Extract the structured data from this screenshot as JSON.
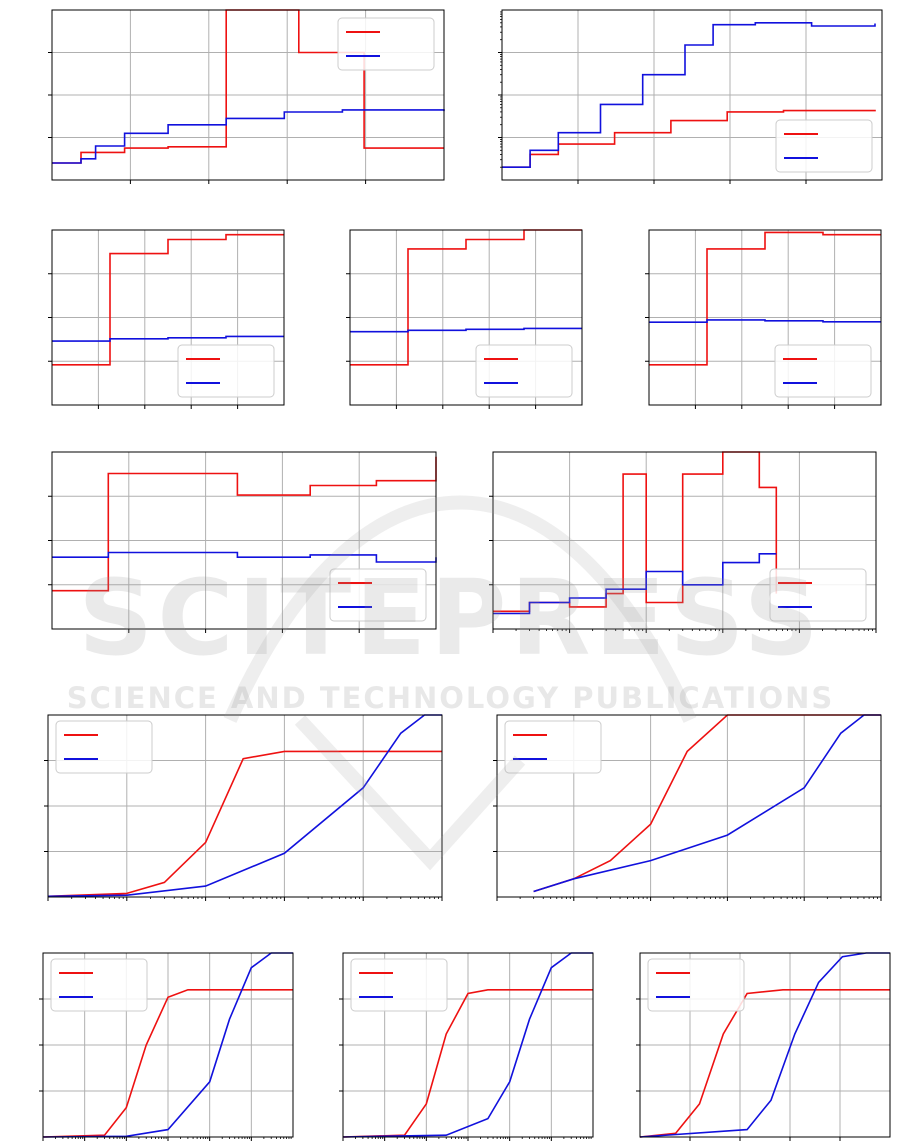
{
  "colors": {
    "red": "#ee1111",
    "blue": "#1111dd",
    "grid": "#b0b0b0",
    "axis": "#000000"
  },
  "watermark": {
    "line1": "SCITEPRESS",
    "line2": "SCIENCE AND TECHNOLOGY PUBLICATIONS"
  },
  "chart_data": [
    {
      "panel": 1,
      "type": "line",
      "step": true,
      "yscale": "linear",
      "grid": true,
      "legend_position": "top-right",
      "legend_entries": 2,
      "xlim": [
        0,
        5.4
      ],
      "ylim": [
        0,
        4
      ],
      "series": [
        {
          "color": "red",
          "x": [
            0,
            0.4,
            0.4,
            1.0,
            1.6,
            2.4,
            2.4,
            3.4,
            3.4,
            4.3,
            4.3,
            5.4
          ],
          "y": [
            0.4,
            0.4,
            0.65,
            0.75,
            0.78,
            0.78,
            4.0,
            3.6,
            3.0,
            2.9,
            0.75,
            0.75
          ]
        },
        {
          "color": "blue",
          "x": [
            0,
            0.4,
            0.6,
            1.0,
            1.6,
            2.4,
            3.2,
            4.0,
            5.4
          ],
          "y": [
            0.4,
            0.5,
            0.8,
            1.1,
            1.3,
            1.45,
            1.6,
            1.65,
            1.62
          ]
        }
      ]
    },
    {
      "panel": 2,
      "type": "line",
      "step": true,
      "yscale": "log",
      "grid": true,
      "legend_position": "bottom-right",
      "legend_entries": 2,
      "xlim": [
        0,
        5.4
      ],
      "ylim": [
        0.1,
        1000
      ],
      "series": [
        {
          "color": "red",
          "x": [
            0,
            0.4,
            0.8,
            1.6,
            2.4,
            3.2,
            4.0,
            5.3
          ],
          "y": [
            0.2,
            0.4,
            0.7,
            1.3,
            2.5,
            4.0,
            4.3,
            4.5
          ]
        },
        {
          "color": "blue",
          "x": [
            0,
            0.4,
            0.8,
            1.4,
            2.0,
            2.6,
            3.0,
            3.6,
            4.4,
            5.3
          ],
          "y": [
            0.2,
            0.5,
            1.3,
            6.0,
            30,
            150,
            450,
            500,
            420,
            480
          ]
        }
      ]
    },
    {
      "panel": 3,
      "type": "line",
      "step": true,
      "yscale": "linear",
      "grid": true,
      "legend_position": "bottom-right",
      "legend_entries": 2,
      "xlim": [
        0,
        4
      ],
      "ylim": [
        0,
        3.7
      ],
      "series": [
        {
          "color": "red",
          "x": [
            0,
            1,
            1,
            2,
            3,
            4
          ],
          "y": [
            0.85,
            0.85,
            3.2,
            3.5,
            3.6,
            3.6
          ]
        },
        {
          "color": "blue",
          "x": [
            0,
            1,
            2,
            3,
            4
          ],
          "y": [
            1.35,
            1.4,
            1.42,
            1.45,
            1.45
          ]
        }
      ]
    },
    {
      "panel": 4,
      "type": "line",
      "step": true,
      "yscale": "linear",
      "grid": true,
      "legend_position": "bottom-right",
      "legend_entries": 2,
      "xlim": [
        0,
        4
      ],
      "ylim": [
        0,
        3.7
      ],
      "series": [
        {
          "color": "red",
          "x": [
            0,
            1,
            1,
            2,
            3,
            4
          ],
          "y": [
            0.85,
            0.85,
            3.3,
            3.5,
            3.7,
            3.7
          ]
        },
        {
          "color": "blue",
          "x": [
            0,
            1,
            2,
            3,
            4
          ],
          "y": [
            1.55,
            1.58,
            1.6,
            1.62,
            1.62
          ]
        }
      ]
    },
    {
      "panel": 5,
      "type": "line",
      "step": true,
      "yscale": "linear",
      "grid": true,
      "legend_position": "bottom-right",
      "legend_entries": 2,
      "xlim": [
        0,
        4
      ],
      "ylim": [
        0,
        3.7
      ],
      "series": [
        {
          "color": "red",
          "x": [
            0,
            1,
            1,
            2,
            3,
            4
          ],
          "y": [
            0.85,
            0.85,
            3.3,
            3.65,
            3.6,
            3.6
          ]
        },
        {
          "color": "blue",
          "x": [
            0,
            1,
            2,
            3,
            4
          ],
          "y": [
            1.75,
            1.8,
            1.78,
            1.76,
            1.76
          ]
        }
      ]
    },
    {
      "panel": 6,
      "type": "line",
      "step": true,
      "yscale": "linear",
      "grid": true,
      "legend_position": "bottom-right",
      "legend_entries": 2,
      "xlim": [
        0,
        5.8
      ],
      "ylim": [
        0,
        3.7
      ],
      "series": [
        {
          "color": "red",
          "x": [
            0,
            0.85,
            0.85,
            2.3,
            2.8,
            3.9,
            4.9,
            5.8
          ],
          "y": [
            0.8,
            0.8,
            3.25,
            3.25,
            2.8,
            3.0,
            3.1,
            3.6
          ]
        },
        {
          "color": "blue",
          "x": [
            0,
            0.85,
            2.3,
            2.8,
            3.9,
            4.9,
            5.8
          ],
          "y": [
            1.5,
            1.6,
            1.6,
            1.5,
            1.55,
            1.4,
            1.5
          ]
        }
      ]
    },
    {
      "panel": 7,
      "type": "line",
      "step": true,
      "yscale": "linear",
      "xscale": "log",
      "grid": true,
      "legend_position": "bottom-right",
      "legend_entries": 2,
      "xlim": [
        1,
        100000
      ],
      "ylim": [
        0,
        4
      ],
      "series": [
        {
          "color": "red",
          "x": [
            1,
            3,
            10,
            30,
            50,
            100,
            300,
            1000,
            3000,
            5000
          ],
          "y": [
            0.4,
            0.6,
            0.5,
            0.8,
            3.5,
            0.6,
            3.5,
            4.0,
            3.2,
            0.8
          ]
        },
        {
          "color": "blue",
          "x": [
            1,
            3,
            10,
            30,
            100,
            300,
            1000,
            3000,
            5000
          ],
          "y": [
            0.35,
            0.6,
            0.7,
            0.9,
            1.3,
            1.0,
            1.5,
            1.7,
            1.7
          ]
        }
      ]
    },
    {
      "panel": 8,
      "type": "line",
      "xscale": "log",
      "grid": true,
      "legend_position": "top-left",
      "legend_entries": 2,
      "xlim": [
        1,
        100000
      ],
      "ylim": [
        0,
        5
      ],
      "series": [
        {
          "color": "red",
          "x": [
            1,
            10,
            30,
            100,
            300,
            1000,
            3000,
            100000
          ],
          "y": [
            0.02,
            0.1,
            0.4,
            1.5,
            3.8,
            4.0,
            4.0,
            4.0
          ]
        },
        {
          "color": "blue",
          "x": [
            1,
            10,
            100,
            1000,
            10000,
            30000,
            60000,
            100000
          ],
          "y": [
            0.02,
            0.05,
            0.3,
            1.2,
            3.0,
            4.5,
            5.0,
            5.0
          ]
        }
      ]
    },
    {
      "panel": 9,
      "type": "line",
      "xscale": "log",
      "grid": true,
      "legend_position": "top-left",
      "legend_entries": 2,
      "xlim": [
        1,
        100000
      ],
      "ylim": [
        0,
        5
      ],
      "series": [
        {
          "color": "red",
          "x": [
            3,
            10,
            30,
            100,
            300,
            1000,
            2000,
            100000
          ],
          "y": [
            0.15,
            0.5,
            1.0,
            2.0,
            4.0,
            5.0,
            5.0,
            5.0
          ]
        },
        {
          "color": "blue",
          "x": [
            3,
            10,
            100,
            1000,
            10000,
            30000,
            60000,
            100000
          ],
          "y": [
            0.15,
            0.5,
            1.0,
            1.7,
            3.0,
            4.5,
            5.0,
            5.0
          ]
        }
      ]
    },
    {
      "panel": 10,
      "type": "line",
      "xscale": "log",
      "grid": true,
      "legend_position": "top-left",
      "legend_entries": 2,
      "xlim": [
        1,
        1000000
      ],
      "ylim": [
        0,
        5
      ],
      "series": [
        {
          "color": "red",
          "x": [
            1,
            30,
            100,
            300,
            1000,
            3000,
            1000000
          ],
          "y": [
            0,
            0.05,
            0.8,
            2.5,
            3.8,
            4.0,
            4.0
          ]
        },
        {
          "color": "blue",
          "x": [
            1,
            100,
            1000,
            10000,
            30000,
            100000,
            300000,
            1000000
          ],
          "y": [
            0,
            0.02,
            0.2,
            1.5,
            3.2,
            4.6,
            5.0,
            5.0
          ]
        }
      ]
    },
    {
      "panel": 11,
      "type": "line",
      "xscale": "log",
      "grid": true,
      "legend_position": "top-left",
      "legend_entries": 2,
      "xlim": [
        1,
        1000000
      ],
      "ylim": [
        0,
        5
      ],
      "series": [
        {
          "color": "red",
          "x": [
            1,
            30,
            100,
            300,
            1000,
            3000,
            1000000
          ],
          "y": [
            0,
            0.05,
            0.9,
            2.8,
            3.9,
            4.0,
            4.0
          ]
        },
        {
          "color": "blue",
          "x": [
            1,
            300,
            3000,
            10000,
            30000,
            100000,
            300000,
            1000000
          ],
          "y": [
            0,
            0.05,
            0.5,
            1.5,
            3.2,
            4.6,
            5.0,
            5.0
          ]
        }
      ]
    },
    {
      "panel": 12,
      "type": "line",
      "grid": true,
      "legend_position": "top-left",
      "legend_entries": 2,
      "xlim": [
        0,
        2.1
      ],
      "ylim": [
        0,
        5
      ],
      "series": [
        {
          "color": "red",
          "x": [
            0,
            0.3,
            0.5,
            0.7,
            0.9,
            1.2,
            2.1
          ],
          "y": [
            0,
            0.1,
            0.9,
            2.8,
            3.9,
            4.0,
            4.0
          ]
        },
        {
          "color": "blue",
          "x": [
            0,
            0.9,
            1.1,
            1.3,
            1.5,
            1.7,
            1.9,
            2.1
          ],
          "y": [
            0,
            0.2,
            1.0,
            2.8,
            4.2,
            4.9,
            5.0,
            5.0
          ]
        }
      ]
    }
  ]
}
